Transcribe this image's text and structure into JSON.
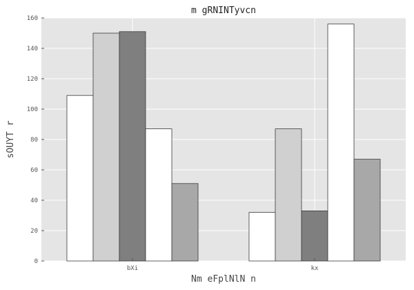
{
  "chart_data": {
    "type": "bar",
    "title": "m gRNINTyvcn",
    "xlabel": "Nm eFplNlN n",
    "ylabel": "sOUYT r",
    "categories": [
      "bXi",
      "kx"
    ],
    "ylim": [
      0,
      160
    ],
    "yticks": [
      0,
      20,
      40,
      60,
      80,
      100,
      120,
      140,
      160
    ],
    "grid": true,
    "series": [
      {
        "values": [
          109,
          32
        ],
        "color": "#ffffff"
      },
      {
        "values": [
          150,
          87
        ],
        "color": "#d0d0d0"
      },
      {
        "values": [
          151,
          33
        ],
        "color": "#7f7f7f"
      },
      {
        "values": [
          87,
          156
        ],
        "color": "#ffffff"
      },
      {
        "values": [
          51,
          67
        ],
        "color": "#a8a8a8"
      }
    ]
  }
}
